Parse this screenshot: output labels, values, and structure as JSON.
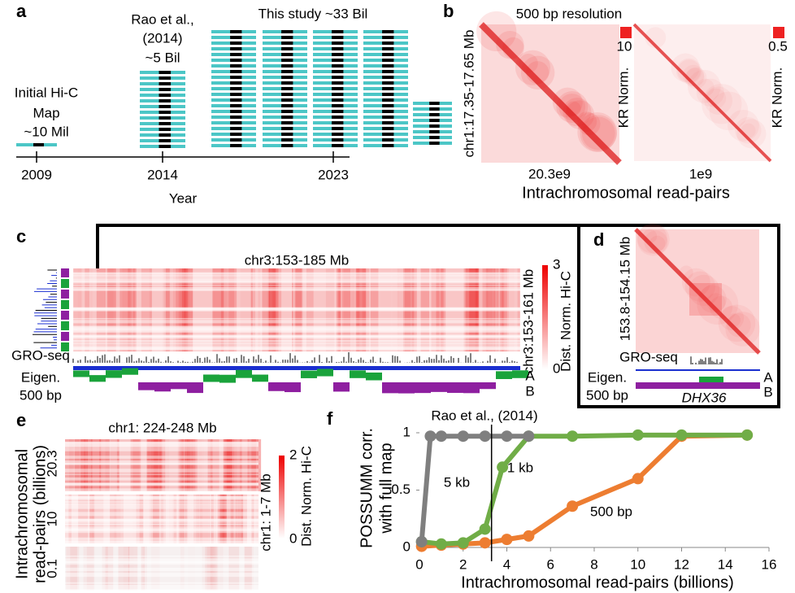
{
  "panel_labels": [
    "a",
    "b",
    "c",
    "d",
    "e",
    "f"
  ],
  "panel_a": {
    "initial_map": [
      "Initial Hi-C",
      "Map",
      "~10 Mil"
    ],
    "rao": [
      "Rao et al.,",
      "(2014)",
      "~5 Bil"
    ],
    "this_study": "This study ~33 Bil",
    "years": [
      "2009",
      "2014",
      "2023"
    ],
    "axis_label": "Year"
  },
  "panel_b": {
    "title": "500 bp resolution",
    "y_label": "chr1:17.35-17.65 Mb",
    "maps": [
      {
        "scale_max": "10",
        "scale_label": "KR Norm.",
        "read_pairs": "20.3e9"
      },
      {
        "scale_max": "0.5",
        "scale_label": "KR Norm.",
        "read_pairs": "1e9"
      }
    ],
    "x_label": "Intrachromosomal read-pairs"
  },
  "panel_c": {
    "title": "chr3:153-185 Mb",
    "y_label": "chr3:153-161 Mb",
    "colorbar_max": "3",
    "colorbar_min": "0",
    "colorbar_label": "Dist. Norm. Hi-C",
    "tracks": [
      "GRO-seq",
      "Eigen.",
      "500 bp"
    ],
    "compartments": [
      "A",
      "B"
    ]
  },
  "panel_d": {
    "y_label": "153.8-154.15 Mb",
    "tracks": [
      "GRO-seq",
      "Eigen.",
      "500 bp"
    ],
    "gene": "DHX36",
    "compartments": [
      "A",
      "B"
    ]
  },
  "panel_e": {
    "title": "chr1: 224-248 Mb",
    "y_label": [
      "Intrachromosomal",
      "read-pairs (billions)"
    ],
    "rows": [
      "20.3",
      "10",
      "0.1"
    ],
    "y2_label": "chr1: 1-7 Mb",
    "colorbar_max": "2",
    "colorbar_min": "0",
    "colorbar_label": "Dist. Norm. Hi-C"
  },
  "chart_data": {
    "type": "line",
    "x_label": "Intrachromosomal read-pairs (billions)",
    "y_label": [
      "POSSUMM corr.",
      "with full map"
    ],
    "xlim": [
      0,
      16
    ],
    "ylim": [
      0,
      1
    ],
    "xticks": [
      0,
      2,
      4,
      6,
      8,
      10,
      12,
      14,
      16
    ],
    "yticks": [
      0,
      0.5,
      1
    ],
    "series": [
      {
        "name": "500 bp",
        "color": "#ed7d31",
        "x": [
          0.1,
          1,
          2,
          3,
          4,
          5,
          7,
          10,
          12,
          15
        ],
        "values": [
          0.01,
          0.02,
          0.03,
          0.04,
          0.07,
          0.1,
          0.36,
          0.6,
          0.97,
          0.98
        ]
      },
      {
        "name": "1 kb",
        "color": "#70ad47",
        "x": [
          0.1,
          1,
          2,
          3,
          3.8,
          5,
          7,
          10,
          12,
          15
        ],
        "values": [
          0.05,
          0.03,
          0.04,
          0.16,
          0.7,
          0.97,
          0.97,
          0.98,
          0.98,
          0.98
        ]
      },
      {
        "name": "5 kb",
        "color": "#7f7f7f",
        "x": [
          0.1,
          0.5,
          1,
          2,
          3,
          4,
          5
        ],
        "values": [
          0.05,
          0.97,
          0.97,
          0.97,
          0.97,
          0.97,
          0.97
        ]
      }
    ],
    "annotations": [
      {
        "x": 3.3,
        "label": "Rao et al., (2014)"
      }
    ]
  }
}
